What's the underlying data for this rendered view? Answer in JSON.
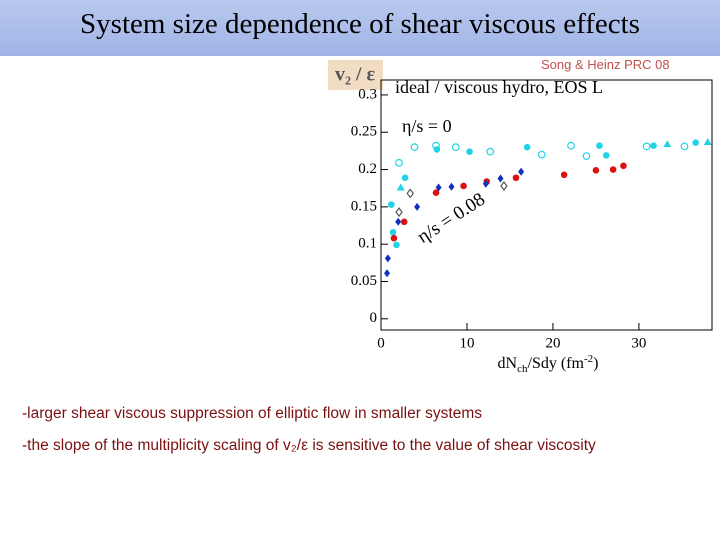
{
  "title": "System size dependence of shear viscous effects",
  "citation": "Song & Heinz PRC 08",
  "bullets": [
    "-larger shear viscous suppression of elliptic flow in smaller systems",
    "-the slope of the multiplicity scaling of v₂/ε is sensitive to the value of shear viscosity"
  ],
  "chart_data": {
    "type": "scatter",
    "y_label": "v₂ / ε",
    "x_label": [
      "dN",
      "ch",
      "/Sdy (fm",
      "-2",
      ")"
    ],
    "annotations": [
      "ideal / viscous hydro, EOS L",
      "η/s = 0",
      "η/s = 0.08"
    ],
    "xlim": [
      0,
      38.5
    ],
    "ylim": [
      -0.015,
      0.32
    ],
    "xticks": [
      0,
      10,
      20,
      30
    ],
    "yticks": [
      0,
      0.05,
      0.1,
      0.15,
      0.2,
      0.25,
      0.3
    ],
    "series": [
      {
        "color": "#22d3e6",
        "marker": "circle",
        "x": [
          1.2,
          1.4,
          1.8,
          2.8,
          6.5,
          10.3,
          17,
          25.4,
          26.2,
          31.7,
          36.6
        ],
        "values": [
          0.153,
          0.116,
          0.099,
          0.189,
          0.227,
          0.224,
          0.23,
          0.232,
          0.219,
          0.232,
          0.236
        ]
      },
      {
        "color": "#22d3e6",
        "marker": "triangle",
        "x": [
          2.3,
          33.3,
          38
        ],
        "values": [
          0.176,
          0.234,
          0.237
        ]
      },
      {
        "color": "#22d3e6",
        "marker": "open-circle",
        "x": [
          2.1,
          3.9,
          6.4,
          8.7,
          12.7,
          18.7,
          22.1,
          23.9,
          30.9,
          35.3
        ],
        "values": [
          0.209,
          0.23,
          0.232,
          0.23,
          0.224,
          0.22,
          0.232,
          0.218,
          0.231,
          0.231
        ]
      },
      {
        "color": "#e01010",
        "marker": "circle",
        "x": [
          1.5,
          2.7,
          6.4,
          9.6,
          12.3,
          15.7,
          21.3,
          25,
          27,
          28.2
        ],
        "values": [
          0.108,
          0.13,
          0.169,
          0.178,
          0.184,
          0.189,
          0.193,
          0.199,
          0.2,
          0.205
        ]
      },
      {
        "color": "#1030c0",
        "marker": "diamond",
        "x": [
          0.7,
          0.8,
          2,
          4.2,
          6.7,
          8.2,
          12.2,
          13.9,
          16.3
        ],
        "values": [
          0.061,
          0.081,
          0.13,
          0.15,
          0.176,
          0.177,
          0.181,
          0.188,
          0.197
        ]
      },
      {
        "color": "#555555",
        "marker": "open-diamond",
        "x": [
          2.1,
          3.4,
          14.3
        ],
        "values": [
          0.143,
          0.168,
          0.178
        ]
      }
    ]
  }
}
